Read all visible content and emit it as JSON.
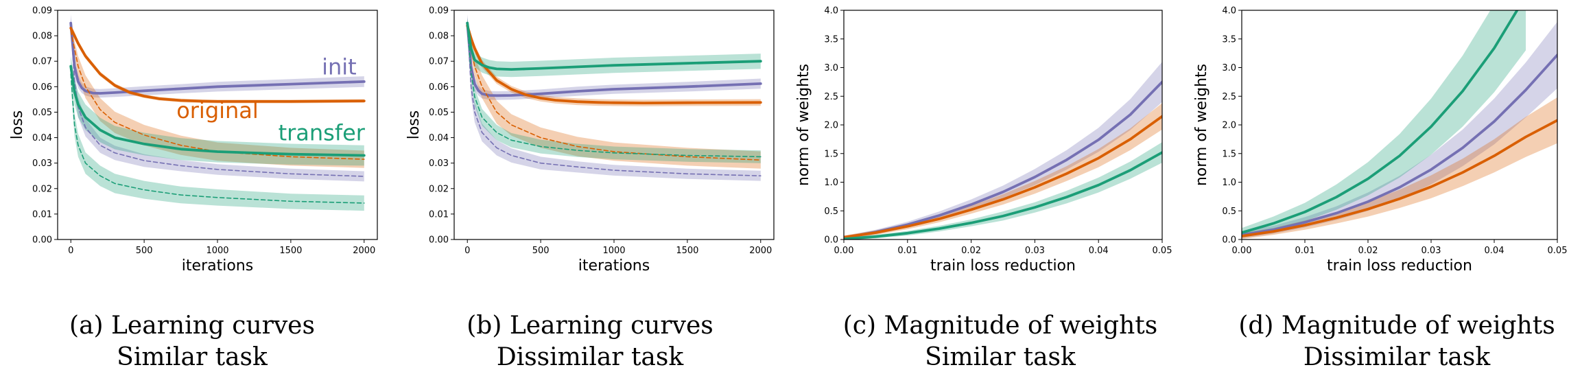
{
  "colors": {
    "init": "#7570b3",
    "original": "#d95f02",
    "transfer": "#1b9e77",
    "axis": "#000000",
    "background": "#ffffff"
  },
  "chart_data": [
    {
      "type": "line",
      "caption": [
        "(a) Learning curves",
        "Similar task"
      ],
      "xlabel": "iterations",
      "ylabel": "loss",
      "xlim": [
        -90,
        2090
      ],
      "ylim": [
        0,
        0.09
      ],
      "xticks": [
        0,
        500,
        1000,
        1500,
        2000
      ],
      "xtick_labels": [
        "0",
        "500",
        "1000",
        "1500",
        "2000"
      ],
      "yticks": [
        0,
        0.01,
        0.02,
        0.03,
        0.04,
        0.05,
        0.06,
        0.07,
        0.08,
        0.09
      ],
      "ytick_labels": [
        "0.00",
        "0.01",
        "0.02",
        "0.03",
        "0.04",
        "0.05",
        "0.06",
        "0.07",
        "0.08",
        "0.09"
      ],
      "grid": false,
      "annotations": [
        {
          "text": "init",
          "series": "init",
          "x": 1830,
          "y": 0.0648
        },
        {
          "text": "original",
          "series": "original",
          "x": 1000,
          "y": 0.0477
        },
        {
          "text": "transfer",
          "series": "transfer",
          "x": 1710,
          "y": 0.039
        }
      ],
      "series": [
        {
          "key": "init",
          "style": "solid",
          "x": [
            0,
            25,
            50,
            75,
            100,
            150,
            200,
            300,
            500,
            750,
            1000,
            1500,
            2000
          ],
          "y": [
            0.085,
            0.068,
            0.062,
            0.0595,
            0.0583,
            0.0575,
            0.0574,
            0.0577,
            0.0584,
            0.0592,
            0.06,
            0.061,
            0.062
          ],
          "band": [
            0.0035,
            0.0035,
            0.0025,
            0.002,
            0.0018,
            0.0017,
            0.0017,
            0.0017,
            0.0018,
            0.0018,
            0.0019,
            0.002,
            0.0021
          ]
        },
        {
          "key": "init",
          "style": "dashed",
          "x": [
            0,
            25,
            50,
            100,
            200,
            300,
            500,
            750,
            1000,
            1500,
            2000
          ],
          "y": [
            0.085,
            0.062,
            0.052,
            0.044,
            0.037,
            0.034,
            0.031,
            0.029,
            0.0275,
            0.0258,
            0.0248
          ],
          "band": [
            0.003,
            0.004,
            0.004,
            0.0035,
            0.003,
            0.0028,
            0.0025,
            0.0022,
            0.0021,
            0.002,
            0.002
          ]
        },
        {
          "key": "original",
          "style": "solid",
          "x": [
            0,
            25,
            50,
            100,
            200,
            300,
            400,
            500,
            600,
            750,
            900,
            1000,
            1200,
            1500,
            2000
          ],
          "y": [
            0.083,
            0.08,
            0.077,
            0.072,
            0.065,
            0.0605,
            0.0578,
            0.0563,
            0.0553,
            0.0546,
            0.0543,
            0.0542,
            0.0542,
            0.0542,
            0.0544
          ],
          "band": [
            0.0015,
            0.0015,
            0.0012,
            0.001,
            0.0009,
            0.0008,
            0.0008,
            0.0007,
            0.0007,
            0.0007,
            0.0007,
            0.0007,
            0.0007,
            0.0007,
            0.0007
          ]
        },
        {
          "key": "original",
          "style": "dashed",
          "x": [
            0,
            25,
            50,
            100,
            200,
            300,
            500,
            750,
            1000,
            1500,
            2000
          ],
          "y": [
            0.082,
            0.075,
            0.068,
            0.06,
            0.051,
            0.046,
            0.041,
            0.037,
            0.0345,
            0.0325,
            0.0315
          ],
          "band": [
            0.002,
            0.003,
            0.004,
            0.0045,
            0.0045,
            0.0042,
            0.004,
            0.0038,
            0.0036,
            0.0035,
            0.0034
          ]
        },
        {
          "key": "transfer",
          "style": "solid",
          "x": [
            0,
            25,
            50,
            100,
            200,
            300,
            500,
            750,
            1000,
            1500,
            2000
          ],
          "y": [
            0.068,
            0.058,
            0.053,
            0.048,
            0.043,
            0.04,
            0.0375,
            0.0355,
            0.0345,
            0.0335,
            0.033
          ],
          "band": [
            0.004,
            0.005,
            0.005,
            0.005,
            0.0048,
            0.0046,
            0.0044,
            0.0043,
            0.0042,
            0.0041,
            0.004
          ]
        },
        {
          "key": "transfer",
          "style": "dashed",
          "x": [
            0,
            25,
            50,
            100,
            200,
            300,
            500,
            750,
            1000,
            1500,
            2000
          ],
          "y": [
            0.065,
            0.045,
            0.037,
            0.03,
            0.025,
            0.022,
            0.0195,
            0.0175,
            0.0165,
            0.015,
            0.0143
          ],
          "band": [
            0.004,
            0.0045,
            0.0045,
            0.0042,
            0.004,
            0.0038,
            0.0035,
            0.0033,
            0.0032,
            0.003,
            0.003
          ]
        }
      ]
    },
    {
      "type": "line",
      "caption": [
        "(b) Learning curves",
        "Dissimilar task"
      ],
      "xlabel": "iterations",
      "ylabel": "loss",
      "xlim": [
        -90,
        2090
      ],
      "ylim": [
        0,
        0.09
      ],
      "xticks": [
        0,
        500,
        1000,
        1500,
        2000
      ],
      "xtick_labels": [
        "0",
        "500",
        "1000",
        "1500",
        "2000"
      ],
      "yticks": [
        0,
        0.01,
        0.02,
        0.03,
        0.04,
        0.05,
        0.06,
        0.07,
        0.08,
        0.09
      ],
      "ytick_labels": [
        "0.00",
        "0.01",
        "0.02",
        "0.03",
        "0.04",
        "0.05",
        "0.06",
        "0.07",
        "0.08",
        "0.09"
      ],
      "grid": false,
      "series": [
        {
          "key": "init",
          "style": "solid",
          "x": [
            0,
            25,
            50,
            75,
            100,
            150,
            200,
            300,
            500,
            750,
            1000,
            1500,
            2000
          ],
          "y": [
            0.085,
            0.068,
            0.061,
            0.0585,
            0.0572,
            0.0566,
            0.0565,
            0.0566,
            0.0572,
            0.0582,
            0.059,
            0.06,
            0.0612
          ],
          "band": [
            0.0035,
            0.003,
            0.0025,
            0.002,
            0.0018,
            0.0017,
            0.0017,
            0.0017,
            0.0017,
            0.0018,
            0.0018,
            0.0019,
            0.002
          ]
        },
        {
          "key": "init",
          "style": "dashed",
          "x": [
            0,
            25,
            50,
            100,
            200,
            300,
            500,
            750,
            1000,
            1500,
            2000
          ],
          "y": [
            0.085,
            0.06,
            0.05,
            0.042,
            0.036,
            0.033,
            0.03,
            0.0285,
            0.0272,
            0.0258,
            0.025
          ],
          "band": [
            0.003,
            0.004,
            0.004,
            0.0035,
            0.003,
            0.0028,
            0.0025,
            0.0022,
            0.0021,
            0.002,
            0.002
          ]
        },
        {
          "key": "original",
          "style": "solid",
          "x": [
            0,
            25,
            50,
            100,
            200,
            300,
            400,
            500,
            600,
            750,
            900,
            1000,
            1200,
            1500,
            2000
          ],
          "y": [
            0.084,
            0.079,
            0.075,
            0.069,
            0.0625,
            0.059,
            0.0568,
            0.0555,
            0.0547,
            0.0541,
            0.0538,
            0.0537,
            0.0536,
            0.0537,
            0.0538
          ],
          "band": [
            0.0018,
            0.0018,
            0.0016,
            0.0015,
            0.0014,
            0.0013,
            0.0013,
            0.0013,
            0.0013,
            0.0013,
            0.0013,
            0.0013,
            0.0013,
            0.0013,
            0.0013
          ]
        },
        {
          "key": "original",
          "style": "dashed",
          "x": [
            0,
            25,
            50,
            100,
            200,
            300,
            500,
            750,
            1000,
            1500,
            2000
          ],
          "y": [
            0.083,
            0.075,
            0.068,
            0.06,
            0.05,
            0.045,
            0.04,
            0.0365,
            0.0345,
            0.0325,
            0.0312
          ],
          "band": [
            0.002,
            0.003,
            0.004,
            0.0045,
            0.0045,
            0.0042,
            0.004,
            0.0038,
            0.0036,
            0.0035,
            0.0034
          ]
        },
        {
          "key": "transfer",
          "style": "solid",
          "x": [
            0,
            25,
            50,
            100,
            150,
            200,
            300,
            400,
            500,
            750,
            1000,
            1500,
            2000
          ],
          "y": [
            0.085,
            0.075,
            0.0705,
            0.0685,
            0.0675,
            0.067,
            0.0668,
            0.067,
            0.0672,
            0.0678,
            0.0684,
            0.0692,
            0.07
          ],
          "band": [
            0.002,
            0.0025,
            0.0028,
            0.003,
            0.003,
            0.003,
            0.003,
            0.003,
            0.003,
            0.003,
            0.003,
            0.003,
            0.003
          ]
        },
        {
          "key": "transfer",
          "style": "dashed",
          "x": [
            0,
            25,
            50,
            100,
            200,
            300,
            500,
            750,
            1000,
            1500,
            2000
          ],
          "y": [
            0.084,
            0.066,
            0.056,
            0.048,
            0.042,
            0.039,
            0.0365,
            0.035,
            0.034,
            0.033,
            0.0325
          ],
          "band": [
            0.003,
            0.0035,
            0.0035,
            0.0033,
            0.003,
            0.0028,
            0.0027,
            0.0026,
            0.0025,
            0.0025,
            0.0025
          ]
        }
      ]
    },
    {
      "type": "line",
      "caption": [
        "(c) Magnitude of weights",
        "Similar task"
      ],
      "xlabel": "train loss reduction",
      "ylabel": "norm of weights",
      "xlim": [
        0,
        0.05
      ],
      "ylim": [
        0,
        4.0
      ],
      "xticks": [
        0,
        0.01,
        0.02,
        0.03,
        0.04,
        0.05
      ],
      "xtick_labels": [
        "0.00",
        "0.01",
        "0.02",
        "0.03",
        "0.04",
        "0.05"
      ],
      "yticks": [
        0,
        0.5,
        1.0,
        1.5,
        2.0,
        2.5,
        3.0,
        3.5,
        4.0
      ],
      "ytick_labels": [
        "0.0",
        "0.5",
        "1.0",
        "1.5",
        "2.0",
        "2.5",
        "3.0",
        "3.5",
        "4.0"
      ],
      "grid": false,
      "series": [
        {
          "key": "init",
          "style": "solid",
          "x": [
            0,
            0.005,
            0.01,
            0.015,
            0.02,
            0.025,
            0.03,
            0.035,
            0.04,
            0.045,
            0.05
          ],
          "y": [
            0.03,
            0.13,
            0.26,
            0.42,
            0.61,
            0.83,
            1.09,
            1.39,
            1.74,
            2.18,
            2.75
          ],
          "band": [
            0.03,
            0.04,
            0.05,
            0.07,
            0.09,
            0.11,
            0.14,
            0.17,
            0.21,
            0.27,
            0.35
          ]
        },
        {
          "key": "original",
          "style": "solid",
          "x": [
            0,
            0.005,
            0.01,
            0.015,
            0.02,
            0.025,
            0.03,
            0.035,
            0.04,
            0.045,
            0.05
          ],
          "y": [
            0.04,
            0.12,
            0.23,
            0.36,
            0.52,
            0.7,
            0.91,
            1.15,
            1.42,
            1.75,
            2.15
          ],
          "band": [
            0.03,
            0.04,
            0.05,
            0.06,
            0.07,
            0.09,
            0.11,
            0.13,
            0.16,
            0.19,
            0.23
          ]
        },
        {
          "key": "transfer",
          "style": "solid",
          "x": [
            0,
            0.005,
            0.01,
            0.015,
            0.02,
            0.025,
            0.03,
            0.035,
            0.04,
            0.045,
            0.05
          ],
          "y": [
            0.01,
            0.05,
            0.11,
            0.19,
            0.29,
            0.41,
            0.56,
            0.74,
            0.95,
            1.21,
            1.52
          ],
          "band": [
            0.02,
            0.03,
            0.04,
            0.05,
            0.06,
            0.08,
            0.09,
            0.11,
            0.13,
            0.15,
            0.18
          ]
        }
      ]
    },
    {
      "type": "line",
      "caption": [
        "(d) Magnitude of weights",
        "Dissimilar task"
      ],
      "xlabel": "train loss reduction",
      "ylabel": "norm of weights",
      "xlim": [
        0,
        0.05
      ],
      "ylim": [
        0,
        4.0
      ],
      "xticks": [
        0,
        0.01,
        0.02,
        0.03,
        0.04,
        0.05
      ],
      "xtick_labels": [
        "0.00",
        "0.01",
        "0.02",
        "0.03",
        "0.04",
        "0.05"
      ],
      "yticks": [
        0,
        0.5,
        1.0,
        1.5,
        2.0,
        2.5,
        3.0,
        3.5,
        4.0
      ],
      "ytick_labels": [
        "0.0",
        "0.5",
        "1.0",
        "1.5",
        "2.0",
        "2.5",
        "3.0",
        "3.5",
        "4.0"
      ],
      "grid": false,
      "series": [
        {
          "key": "init",
          "style": "solid",
          "x": [
            0,
            0.005,
            0.01,
            0.015,
            0.02,
            0.025,
            0.03,
            0.035,
            0.04,
            0.045,
            0.05
          ],
          "y": [
            0.08,
            0.17,
            0.3,
            0.46,
            0.66,
            0.91,
            1.22,
            1.6,
            2.06,
            2.61,
            3.22
          ],
          "band": [
            0.06,
            0.07,
            0.09,
            0.12,
            0.16,
            0.2,
            0.26,
            0.32,
            0.4,
            0.48,
            0.58
          ]
        },
        {
          "key": "original",
          "style": "solid",
          "x": [
            0,
            0.005,
            0.01,
            0.015,
            0.02,
            0.025,
            0.03,
            0.035,
            0.04,
            0.045,
            0.05
          ],
          "y": [
            0.06,
            0.14,
            0.25,
            0.38,
            0.53,
            0.71,
            0.92,
            1.17,
            1.46,
            1.79,
            2.08
          ],
          "band": [
            0.05,
            0.06,
            0.08,
            0.1,
            0.13,
            0.16,
            0.2,
            0.24,
            0.29,
            0.35,
            0.4
          ]
        },
        {
          "key": "transfer",
          "style": "solid",
          "x": [
            0,
            0.005,
            0.01,
            0.015,
            0.02,
            0.025,
            0.03,
            0.035,
            0.04,
            0.045
          ],
          "y": [
            0.12,
            0.28,
            0.48,
            0.74,
            1.06,
            1.46,
            1.97,
            2.59,
            3.34,
            4.25
          ],
          "band": [
            0.08,
            0.12,
            0.16,
            0.22,
            0.29,
            0.38,
            0.49,
            0.62,
            0.77,
            0.95
          ]
        }
      ]
    }
  ]
}
